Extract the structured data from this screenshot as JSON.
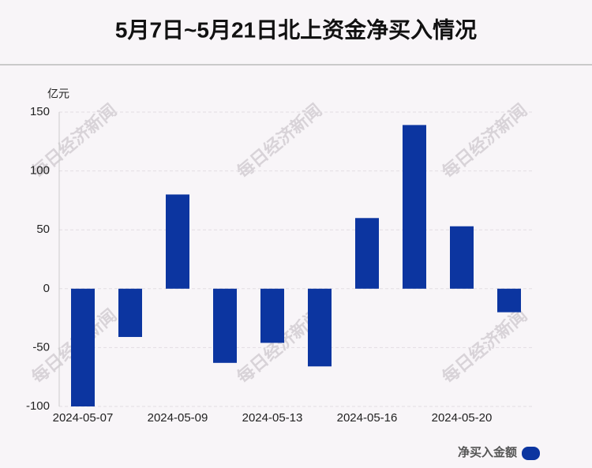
{
  "chart_data": {
    "type": "bar",
    "title": "5月7日~5月21日北上资金净买入情况",
    "y_unit": "亿元",
    "watermark": "每日经济新闻",
    "categories": [
      "2024-05-07",
      null,
      "2024-05-09",
      null,
      "2024-05-13",
      null,
      "2024-05-16",
      null,
      "2024-05-20",
      null
    ],
    "series": [
      {
        "name": "净买入金额",
        "color": "#0c35a0",
        "values": [
          -100,
          -41,
          80,
          -63,
          -46,
          -66,
          60,
          139,
          53,
          -20
        ]
      }
    ],
    "ylim": [
      -100,
      150
    ],
    "yticks": [
      -100,
      -50,
      0,
      50,
      100,
      150
    ],
    "grid": true,
    "legend": "bottom-right"
  }
}
